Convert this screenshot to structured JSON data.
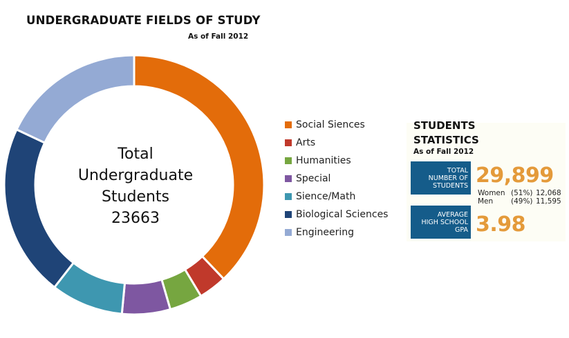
{
  "chart_data": {
    "type": "pie",
    "title": "UNDERGRADUATE FIELDS OF STUDY",
    "subtitle": "As of Fall 2012",
    "center_text": [
      "Total",
      "Undergraduate",
      "Students",
      "23663"
    ],
    "categories": [
      "Social Siences",
      "Arts",
      "Humanities",
      "Special",
      "Sience/Math",
      "Biological Sciences",
      "Engineering"
    ],
    "values": [
      8970,
      828,
      970,
      1420,
      2130,
      5090,
      4255
    ],
    "colors": [
      "#e36c0a",
      "#c0392b",
      "#76a640",
      "#7e57a1",
      "#3e97b0",
      "#1f4477",
      "#94aad4"
    ],
    "legend_position": "right"
  },
  "stats": {
    "title_line1": "STUDENTS",
    "title_line2": "STATISTICS",
    "subtitle": "As of Fall 2012",
    "total_label": [
      "TOTAL",
      "NUMBER OF",
      "STUDENTS"
    ],
    "total_value": "29,899",
    "women_label": "Women",
    "women_pct": "(51%)",
    "women_count": "12,068",
    "men_label": "Men",
    "men_pct": "(49%)",
    "men_count": "11,595",
    "gpa_label": [
      "AVERAGE",
      "HIGH SCHOOL",
      "GPA"
    ],
    "gpa_value": "3.98",
    "box_color": "#155c8a",
    "value_color": "#e49a3a"
  }
}
